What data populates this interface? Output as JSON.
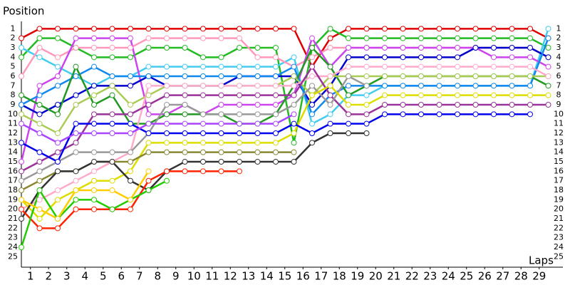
{
  "chart_data": {
    "type": "line",
    "y_label": "Position",
    "x_label": "Laps",
    "x": [
      0,
      1,
      2,
      3,
      4,
      5,
      6,
      7,
      8,
      9,
      10,
      11,
      12,
      13,
      14,
      15,
      16,
      17,
      18,
      19,
      20,
      21,
      22,
      23,
      24,
      25,
      26,
      27,
      28,
      29
    ],
    "xlim": [
      0,
      29
    ],
    "xticks": [
      1,
      2,
      3,
      4,
      5,
      6,
      7,
      8,
      9,
      10,
      11,
      12,
      13,
      14,
      15,
      16,
      17,
      18,
      19,
      20,
      21,
      22,
      23,
      24,
      25,
      26,
      27,
      28,
      29
    ],
    "ylim": [
      26,
      0
    ],
    "yticks": [
      1,
      2,
      3,
      4,
      5,
      6,
      7,
      8,
      9,
      10,
      11,
      12,
      13,
      14,
      15,
      16,
      17,
      18,
      19,
      20,
      21,
      22,
      23,
      24,
      25
    ],
    "series": [
      {
        "color": "#e00000",
        "values": [
          2,
          1,
          1,
          1,
          1,
          1,
          1,
          1,
          1,
          1,
          1,
          1,
          1,
          1,
          1,
          1,
          5,
          2,
          1,
          1,
          1,
          1,
          1,
          1,
          1,
          1,
          1,
          1,
          1,
          2
        ]
      },
      {
        "color": "#22bb22",
        "values": [
          4,
          2,
          2,
          3,
          4,
          4,
          4,
          3,
          3,
          3,
          4,
          4,
          3,
          3,
          3,
          13,
          3,
          1,
          2,
          2,
          2,
          2,
          2,
          2,
          2,
          2,
          2,
          2,
          2,
          3
        ]
      },
      {
        "color": "#44ccee",
        "values": [
          3,
          4,
          5,
          6,
          7,
          6,
          6,
          5,
          5,
          5,
          5,
          5,
          5,
          5,
          5,
          4,
          11,
          10,
          8,
          8,
          7,
          7,
          7,
          7,
          7,
          7,
          7,
          7,
          7,
          1
        ]
      },
      {
        "color": "#ff99bb",
        "values": [
          6,
          3,
          4,
          3,
          3,
          3,
          3,
          2,
          2,
          2,
          2,
          2,
          2,
          4,
          4,
          5,
          4,
          3,
          3,
          3,
          3,
          3,
          3,
          3,
          3,
          3,
          3,
          3,
          3,
          4
        ]
      },
      {
        "color": "#cc44ee",
        "values": [
          15,
          7,
          6,
          2,
          2,
          2,
          2,
          10,
          10,
          9,
          10,
          9,
          9,
          9,
          9,
          8,
          2,
          5,
          3,
          3,
          3,
          3,
          3,
          3,
          3,
          3,
          4,
          4,
          4,
          5
        ]
      },
      {
        "color": "#0000cc",
        "values": [
          9,
          10,
          9,
          8,
          7,
          7,
          7,
          6,
          7,
          7,
          7,
          7,
          6,
          6,
          6,
          6,
          9,
          7,
          4,
          4,
          4,
          4,
          4,
          4,
          4,
          3,
          3,
          3,
          3,
          4
        ]
      },
      {
        "color": "#1188ee",
        "values": [
          9,
          8,
          7,
          6,
          5,
          6,
          6,
          6,
          6,
          6,
          6,
          6,
          6,
          6,
          6,
          5,
          10,
          8,
          7,
          7,
          7,
          7,
          7,
          7,
          7,
          7,
          7,
          7,
          7,
          2
        ]
      },
      {
        "color": "#229922",
        "values": [
          8,
          9,
          10,
          5,
          9,
          8,
          11,
          11,
          10,
          10,
          10,
          10,
          11,
          11,
          10,
          7,
          3,
          5,
          8,
          7,
          6,
          6,
          6,
          6,
          6,
          6,
          6,
          6,
          6,
          7
        ]
      },
      {
        "color": "#aacc55",
        "values": [
          10,
          11,
          12,
          9,
          8,
          7,
          9,
          8,
          7,
          7,
          7,
          7,
          7,
          7,
          7,
          6,
          8,
          6,
          6,
          6,
          6,
          6,
          6,
          6,
          6,
          6,
          6,
          6,
          6,
          6
        ]
      },
      {
        "color": "#ffaacc",
        "values": [
          20,
          19,
          18,
          17,
          16,
          15,
          14,
          7,
          7,
          7,
          7,
          7,
          7,
          7,
          7,
          7,
          6,
          6,
          5,
          5,
          5,
          5,
          5,
          5,
          5,
          5,
          5,
          5,
          5,
          6
        ]
      },
      {
        "color": "#993399",
        "values": [
          16,
          15,
          14,
          13,
          10,
          10,
          10,
          9,
          8,
          8,
          8,
          8,
          8,
          8,
          8,
          8,
          5,
          8,
          10,
          10,
          9,
          9,
          9,
          9,
          9,
          9,
          9,
          9,
          9,
          9
        ]
      },
      {
        "color": "#999999",
        "values": [
          17,
          16,
          15,
          14,
          14,
          14,
          14,
          12,
          9,
          9,
          10,
          10,
          10,
          10,
          10,
          9,
          7,
          9,
          6,
          7,
          null,
          null,
          null,
          null,
          null,
          null,
          null,
          null,
          null,
          null
        ]
      },
      {
        "color": "#dddd00",
        "values": [
          19,
          21,
          19,
          18,
          17,
          17,
          16,
          13,
          13,
          13,
          13,
          13,
          13,
          13,
          13,
          12,
          8,
          7,
          9,
          9,
          8,
          8,
          8,
          8,
          8,
          8,
          8,
          8,
          8,
          8
        ]
      },
      {
        "color": "#0000ee",
        "values": [
          13,
          14,
          15,
          11,
          11,
          11,
          11,
          12,
          12,
          12,
          12,
          12,
          12,
          12,
          12,
          11,
          12,
          11,
          11,
          11,
          10,
          10,
          10,
          10,
          10,
          10,
          10,
          10,
          10,
          null
        ]
      },
      {
        "color": "#888833",
        "values": [
          18,
          17,
          16,
          16,
          15,
          15,
          15,
          14,
          14,
          14,
          14,
          14,
          14,
          14,
          14,
          14,
          null,
          null,
          null,
          null,
          null,
          null,
          null,
          null,
          null,
          null,
          null,
          null,
          null,
          null
        ]
      },
      {
        "color": "#333333",
        "values": [
          21,
          18,
          16,
          16,
          15,
          15,
          17,
          18,
          16,
          15,
          15,
          15,
          15,
          15,
          15,
          15,
          13,
          12,
          12,
          12,
          null,
          null,
          null,
          null,
          null,
          null,
          null,
          null,
          null,
          null
        ]
      },
      {
        "color": "#aa44ff",
        "values": [
          11,
          12,
          13,
          12,
          12,
          12,
          12,
          11,
          11,
          11,
          11,
          11,
          11,
          11,
          11,
          10,
          null,
          null,
          null,
          null,
          null,
          null,
          null,
          null,
          null,
          null,
          null,
          null,
          null,
          null
        ]
      },
      {
        "color": "#ff2200",
        "values": [
          20,
          22,
          22,
          20,
          20,
          20,
          20,
          17,
          16,
          16,
          16,
          16,
          16,
          null,
          null,
          null,
          null,
          null,
          null,
          null,
          null,
          null,
          null,
          null,
          null,
          null,
          null,
          null,
          null,
          null
        ]
      },
      {
        "color": "#22cc00",
        "values": [
          24,
          18,
          21,
          19,
          19,
          20,
          19,
          18,
          17,
          null,
          null,
          null,
          null,
          null,
          null,
          null,
          null,
          null,
          null,
          null,
          null,
          null,
          null,
          null,
          null,
          null,
          null,
          null,
          null,
          null
        ]
      },
      {
        "color": "#ffcc00",
        "values": [
          19,
          20,
          21,
          18,
          18,
          18,
          19,
          16,
          null,
          null,
          null,
          null,
          null,
          null,
          null,
          null,
          null,
          null,
          null,
          null,
          null,
          null,
          null,
          null,
          null,
          null,
          null,
          null,
          null,
          null
        ]
      }
    ]
  }
}
